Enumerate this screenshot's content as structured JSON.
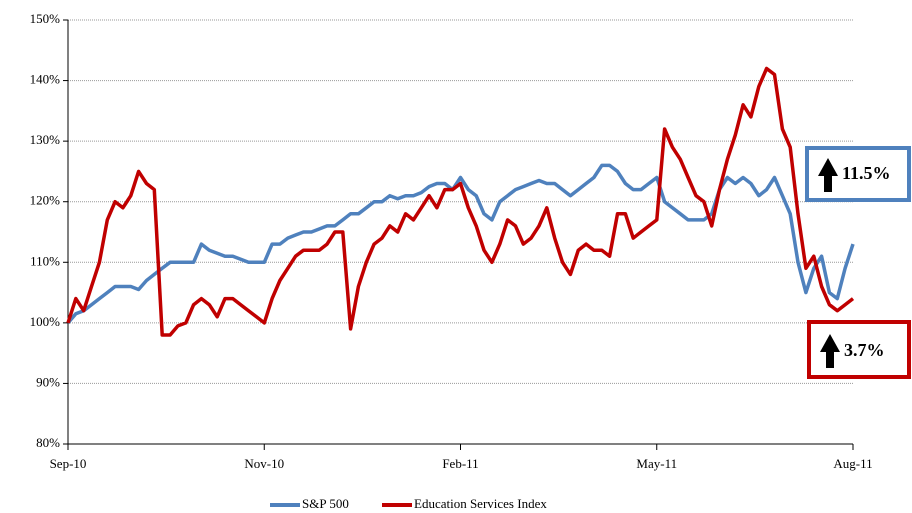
{
  "chart_data": {
    "type": "line",
    "categories": [
      "Sep-10",
      null,
      null,
      null,
      null,
      null,
      null,
      null,
      null,
      null,
      null,
      null,
      null,
      null,
      null,
      null,
      null,
      null,
      null,
      null,
      null,
      null,
      null,
      null,
      null,
      "Nov-10",
      null,
      null,
      null,
      null,
      null,
      null,
      null,
      null,
      null,
      null,
      null,
      null,
      null,
      null,
      null,
      null,
      null,
      null,
      null,
      null,
      null,
      null,
      null,
      null,
      "Feb-11",
      null,
      null,
      null,
      null,
      null,
      null,
      null,
      null,
      null,
      null,
      null,
      null,
      null,
      null,
      null,
      null,
      null,
      null,
      null,
      null,
      null,
      null,
      null,
      null,
      "May-11",
      null,
      null,
      null,
      null,
      null,
      null,
      null,
      null,
      null,
      null,
      null,
      null,
      null,
      null,
      null,
      null,
      null,
      null,
      null,
      null,
      null,
      null,
      null,
      null,
      "Aug-11"
    ],
    "series": [
      {
        "name": "S&P 500",
        "color": "#4f81bd",
        "values": [
          100,
          101.5,
          102,
          103,
          104,
          105,
          106,
          106,
          106,
          105.5,
          107,
          108,
          109,
          110,
          110,
          110,
          110,
          113,
          112,
          111.5,
          111,
          111,
          110.5,
          110,
          110,
          110,
          113,
          113,
          114,
          114.5,
          115,
          115,
          115.5,
          116,
          116,
          117,
          118,
          118,
          119,
          120,
          120,
          121,
          120.5,
          121,
          121,
          121.5,
          122.5,
          123,
          123,
          122,
          124,
          122,
          121,
          118,
          117,
          120,
          121,
          122,
          122.5,
          123,
          123.5,
          123,
          123,
          122,
          121,
          122,
          123,
          124,
          126,
          126,
          125,
          123,
          122,
          122,
          123,
          124,
          120,
          119,
          118,
          117,
          117,
          117,
          118,
          122,
          124,
          123,
          124,
          123,
          121,
          122,
          124,
          121,
          118,
          110,
          105,
          109,
          111,
          105,
          104,
          109,
          113
        ]
      },
      {
        "name": "Education Services Index",
        "color": "#c00000",
        "values": [
          100,
          104,
          102,
          106,
          110,
          117,
          120,
          119,
          121,
          125,
          123,
          122,
          98,
          98,
          99.5,
          100,
          103,
          104,
          103,
          101,
          104,
          104,
          103,
          102,
          101,
          100,
          104,
          107,
          109,
          111,
          112,
          112,
          112,
          113,
          115,
          115,
          99,
          106,
          110,
          113,
          114,
          116,
          115,
          118,
          117,
          119,
          121,
          119,
          122,
          122,
          123,
          119,
          116,
          112,
          110,
          113,
          117,
          116,
          113,
          114,
          116,
          119,
          114,
          110,
          108,
          112,
          113,
          112,
          112,
          111,
          118,
          118,
          114,
          115,
          116,
          117,
          132,
          129,
          127,
          124,
          121,
          120,
          116,
          122,
          127,
          131,
          136,
          134,
          139,
          142,
          141,
          132,
          129,
          118,
          109,
          111,
          106,
          103,
          102,
          103,
          104
        ]
      }
    ],
    "ylim": [
      80,
      150
    ],
    "yticks": [
      {
        "value": 80,
        "label": "80%"
      },
      {
        "value": 90,
        "label": "90%"
      },
      {
        "value": 100,
        "label": "100%"
      },
      {
        "value": 110,
        "label": "110%"
      },
      {
        "value": 120,
        "label": "120%"
      },
      {
        "value": 130,
        "label": "130%"
      },
      {
        "value": 140,
        "label": "140%"
      },
      {
        "value": 150,
        "label": "150%"
      }
    ],
    "grid": true,
    "legend": "bottom",
    "annotations": [
      "11.5%",
      "3.7%"
    ]
  }
}
